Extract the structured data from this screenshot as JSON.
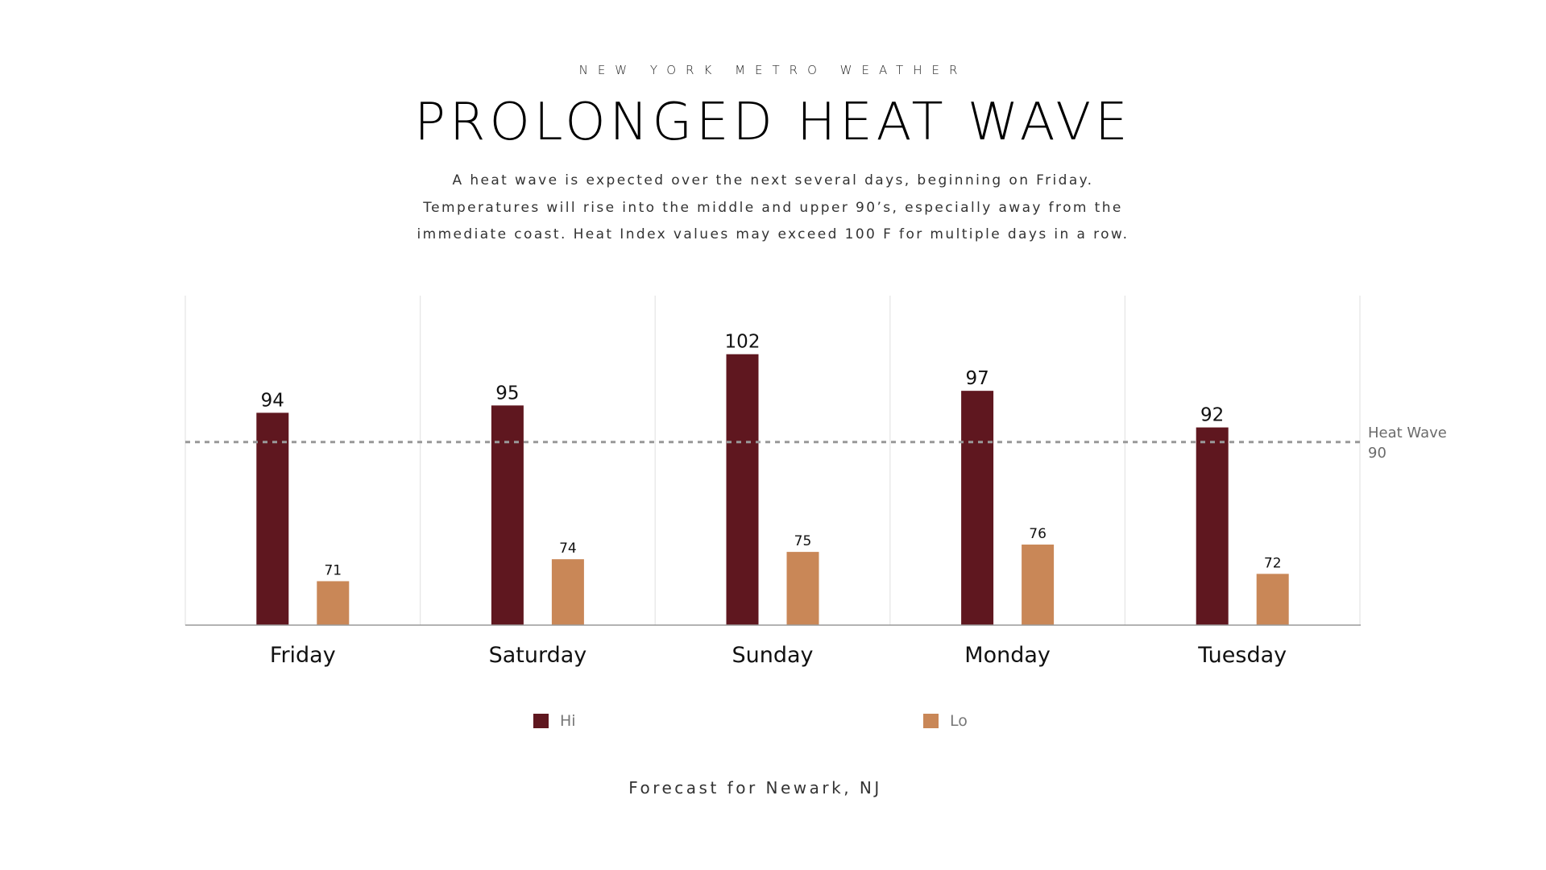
{
  "header": {
    "kicker": "NEW YORK METRO WEATHER",
    "title": "PROLONGED HEAT WAVE",
    "description_lines": [
      "A heat wave is expected over the next several days, beginning on Friday.",
      "Temperatures will rise into the middle and upper 90’s, especially away from the",
      "immediate coast. Heat Index values may exceed 100 F for multiple days in a row."
    ]
  },
  "footer": "Forecast for Newark, NJ",
  "colors": {
    "hi": "#5f171f",
    "lo": "#c98757",
    "reference_line": "#999999",
    "gridline": "#e6e6e6",
    "axis": "#9a9a9a"
  },
  "chart_data": {
    "type": "bar",
    "title": "PROLONGED HEAT WAVE",
    "xlabel": "",
    "ylabel": "",
    "categories": [
      "Friday",
      "Saturday",
      "Sunday",
      "Monday",
      "Tuesday"
    ],
    "series": [
      {
        "name": "Hi",
        "values": [
          94,
          95,
          102,
          97,
          92
        ]
      },
      {
        "name": "Lo",
        "values": [
          71,
          74,
          75,
          76,
          72
        ]
      }
    ],
    "ylim": [
      65,
      110
    ],
    "y_axis_visible": false,
    "grid": "vertical category separators",
    "reference_line": {
      "label": "Heat Wave",
      "value": 90,
      "style": "dashed"
    },
    "legend": {
      "position": "bottom",
      "entries": [
        "Hi",
        "Lo"
      ]
    },
    "data_labels": true
  }
}
